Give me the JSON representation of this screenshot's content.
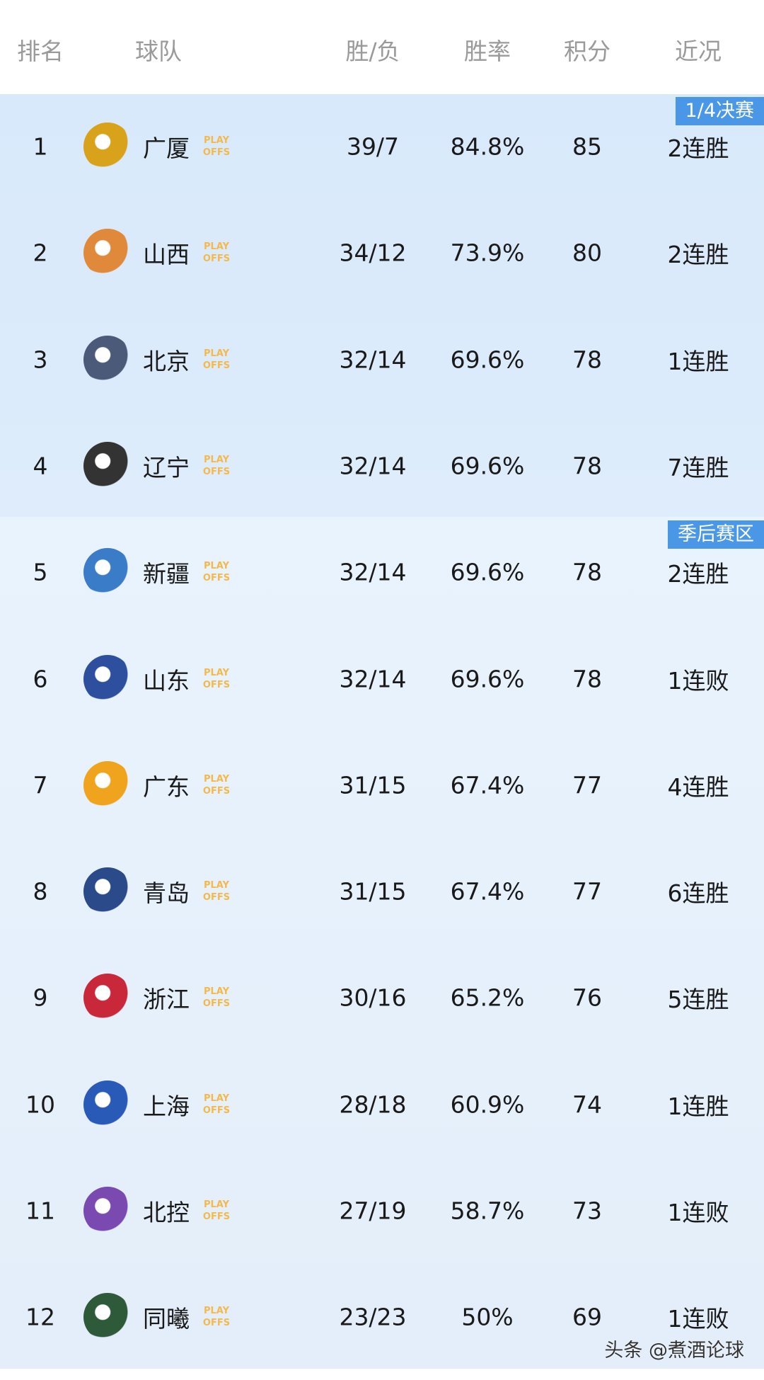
{
  "header": {
    "rank": "排名",
    "team": "球队",
    "wl": "胜/负",
    "pct": "胜率",
    "pts": "积分",
    "recent": "近况"
  },
  "zones": {
    "quarterfinal": "1/4决赛",
    "playoff": "季后赛区"
  },
  "playoffs_label": [
    "PLAY",
    "OFFS"
  ],
  "playoffs_color": "#f4b94a",
  "rows": [
    {
      "rank": "1",
      "team": "广厦",
      "wl": "39/7",
      "pct": "84.8%",
      "pts": "85",
      "recent": "2连胜",
      "logo": "#d9a21b"
    },
    {
      "rank": "2",
      "team": "山西",
      "wl": "34/12",
      "pct": "73.9%",
      "pts": "80",
      "recent": "2连胜",
      "logo": "#e0893a"
    },
    {
      "rank": "3",
      "team": "北京",
      "wl": "32/14",
      "pct": "69.6%",
      "pts": "78",
      "recent": "1连胜",
      "logo": "#4a5a78"
    },
    {
      "rank": "4",
      "team": "辽宁",
      "wl": "32/14",
      "pct": "69.6%",
      "pts": "78",
      "recent": "7连胜",
      "logo": "#333333"
    },
    {
      "rank": "5",
      "team": "新疆",
      "wl": "32/14",
      "pct": "69.6%",
      "pts": "78",
      "recent": "2连胜",
      "logo": "#3a7cc8"
    },
    {
      "rank": "6",
      "team": "山东",
      "wl": "32/14",
      "pct": "69.6%",
      "pts": "78",
      "recent": "1连败",
      "logo": "#2d4f9e"
    },
    {
      "rank": "7",
      "team": "广东",
      "wl": "31/15",
      "pct": "67.4%",
      "pts": "77",
      "recent": "4连胜",
      "logo": "#f0a31c"
    },
    {
      "rank": "8",
      "team": "青岛",
      "wl": "31/15",
      "pct": "67.4%",
      "pts": "77",
      "recent": "6连胜",
      "logo": "#2a4a8a"
    },
    {
      "rank": "9",
      "team": "浙江",
      "wl": "30/16",
      "pct": "65.2%",
      "pts": "76",
      "recent": "5连胜",
      "logo": "#c8283a"
    },
    {
      "rank": "10",
      "team": "上海",
      "wl": "28/18",
      "pct": "60.9%",
      "pts": "74",
      "recent": "1连胜",
      "logo": "#2a5ab8"
    },
    {
      "rank": "11",
      "team": "北控",
      "wl": "27/19",
      "pct": "58.7%",
      "pts": "73",
      "recent": "1连败",
      "logo": "#7a4ab0"
    },
    {
      "rank": "12",
      "team": "同曦",
      "wl": "23/23",
      "pct": "50%",
      "pts": "69",
      "recent": "1连败",
      "logo": "#2f5a3a"
    }
  ],
  "watermark": "头条 @煮酒论球"
}
